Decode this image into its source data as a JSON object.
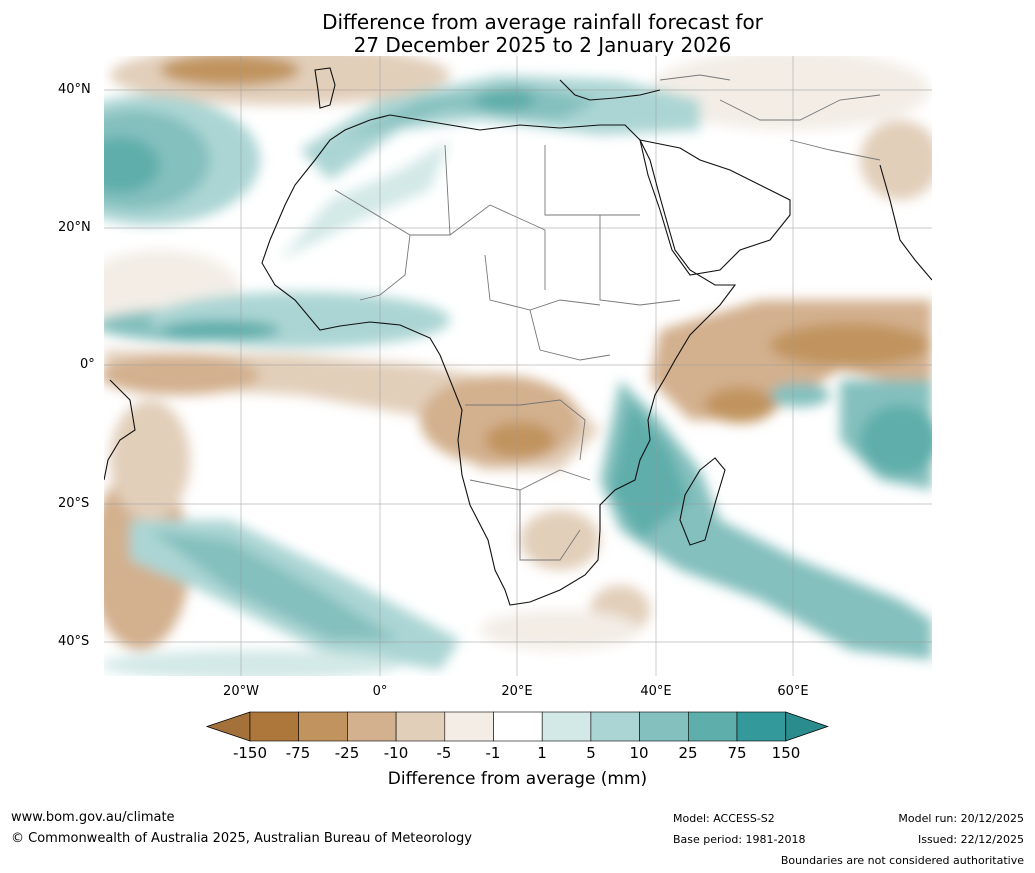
{
  "title": {
    "line1": "Difference from average rainfall forecast for",
    "line2": "27 December 2025 to 2 January 2026"
  },
  "axes": {
    "lat_labels": [
      "40°N",
      "20°N",
      "0°",
      "20°S",
      "40°S"
    ],
    "lon_labels": [
      "20°W",
      "0°",
      "20°E",
      "40°E",
      "60°E"
    ]
  },
  "colorbar": {
    "title": "Difference from average (mm)",
    "ticks": [
      "-150",
      "-75",
      "-25",
      "-10",
      "-5",
      "-1",
      "1",
      "5",
      "10",
      "25",
      "75",
      "150"
    ],
    "colors": [
      "#a5713b",
      "#ad773c",
      "#c1945f",
      "#d3b08e",
      "#e2cfba",
      "#f3ede6",
      "#ffffff",
      "#d3e9e7",
      "#abd5d4",
      "#84c0be",
      "#5eaeab",
      "#34999a",
      "#2a8c8c"
    ]
  },
  "footer": {
    "website": "www.bom.gov.au/climate",
    "copyright": "© Commonwealth of Australia 2025, Australian Bureau of Meteorology",
    "model": "Model: ACCESS-S2",
    "base_period": "Base period: 1981-2018",
    "model_run": "Model run: 20/12/2025",
    "issued": "Issued: 22/12/2025",
    "disclaimer": "Boundaries are not considered authoritative"
  }
}
